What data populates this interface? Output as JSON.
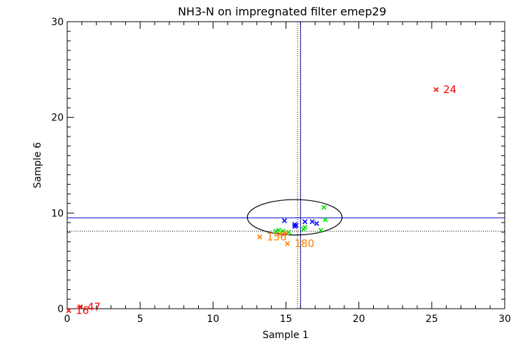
{
  "chart_data": {
    "type": "scatter",
    "title": "NH3-N on impregnated filter emep29",
    "xlabel": "Sample 1",
    "ylabel": "Sample 6",
    "xlim": [
      0,
      30
    ],
    "ylim": [
      0,
      30
    ],
    "xticks": [
      0,
      5,
      10,
      15,
      20,
      25,
      30
    ],
    "yticks": [
      0,
      10,
      20,
      30
    ],
    "grid": false,
    "reference_lines": {
      "vertical": [
        {
          "x": 15.8,
          "style": "dotted",
          "color": "#000000"
        },
        {
          "x": 16.0,
          "style": "solid",
          "color": "#000080"
        }
      ],
      "horizontal": [
        {
          "y": 9.5,
          "style": "solid",
          "color": "#0000cc"
        },
        {
          "y": 8.1,
          "style": "dotted",
          "color": "#000000"
        }
      ]
    },
    "ellipse": {
      "cx": 15.6,
      "cy": 9.55,
      "rx": 3.25,
      "ry": 1.85,
      "color": "#000000"
    },
    "colors": {
      "red": "#ff0000",
      "orange": "#ff7f00",
      "green": "#00e000",
      "blue": "#0000ff"
    },
    "series": [
      {
        "color": "#0000ff",
        "points": [
          {
            "x": 14.9,
            "y": 9.2
          },
          {
            "x": 15.6,
            "y": 8.8
          },
          {
            "x": 15.6,
            "y": 8.6
          },
          {
            "x": 15.7,
            "y": 8.7
          },
          {
            "x": 16.3,
            "y": 9.1
          },
          {
            "x": 16.8,
            "y": 9.1
          },
          {
            "x": 17.1,
            "y": 8.9
          }
        ]
      },
      {
        "color": "#00e000",
        "points": [
          {
            "x": 17.6,
            "y": 10.6
          },
          {
            "x": 17.7,
            "y": 9.3
          },
          {
            "x": 17.4,
            "y": 8.2
          },
          {
            "x": 16.3,
            "y": 8.5
          },
          {
            "x": 16.2,
            "y": 8.3
          },
          {
            "x": 15.2,
            "y": 8.0
          },
          {
            "x": 14.8,
            "y": 8.1
          },
          {
            "x": 14.5,
            "y": 8.2
          },
          {
            "x": 14.3,
            "y": 8.1
          }
        ]
      },
      {
        "color": "#ff7f00",
        "points": [
          {
            "x": 13.2,
            "y": 7.5,
            "label": "156"
          },
          {
            "x": 15.1,
            "y": 6.8,
            "label": "180"
          },
          {
            "x": 15.0,
            "y": 7.9
          },
          {
            "x": 14.6,
            "y": 7.8
          }
        ]
      },
      {
        "color": "#ff0000",
        "points": [
          {
            "x": 25.3,
            "y": 22.9,
            "label": "24"
          },
          {
            "x": 0.9,
            "y": 0.2,
            "label": "47"
          },
          {
            "x": 0.1,
            "y": -0.2,
            "label": "16"
          }
        ]
      }
    ]
  }
}
